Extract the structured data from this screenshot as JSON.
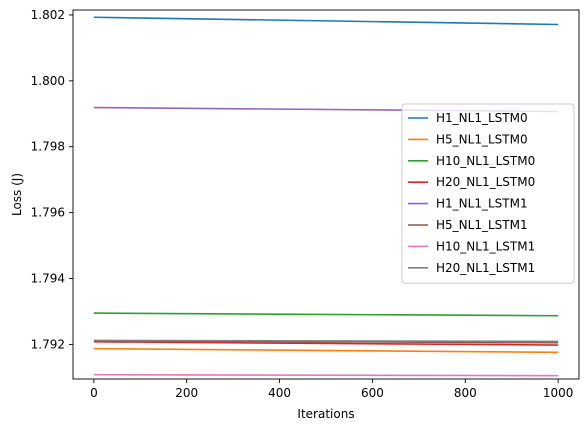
{
  "chart_data": {
    "type": "line",
    "xlabel": "Iterations",
    "ylabel": "Loss (J)",
    "xlim": [
      -45,
      1045
    ],
    "ylim": [
      1.79095,
      1.80215
    ],
    "xticks": [
      0,
      200,
      400,
      600,
      800,
      1000
    ],
    "yticks": [
      1.792,
      1.794,
      1.796,
      1.798,
      1.8,
      1.802
    ],
    "ytick_labels": [
      "1.792",
      "1.794",
      "1.796",
      "1.798",
      "1.800",
      "1.802"
    ],
    "grid": false,
    "legend_position": "center-right",
    "series": [
      {
        "name": "H1_NL1_LSTM0",
        "color": "#1f77b4",
        "x": [
          0,
          1000
        ],
        "y": [
          1.80193,
          1.80171
        ]
      },
      {
        "name": "H5_NL1_LSTM0",
        "color": "#ff7f0e",
        "x": [
          0,
          1000
        ],
        "y": [
          1.79187,
          1.79176
        ]
      },
      {
        "name": "H10_NL1_LSTM0",
        "color": "#2ca02c",
        "x": [
          0,
          1000
        ],
        "y": [
          1.79295,
          1.79287
        ]
      },
      {
        "name": "H20_NL1_LSTM0",
        "color": "#d62728",
        "x": [
          0,
          1000
        ],
        "y": [
          1.79208,
          1.79198
        ]
      },
      {
        "name": "H1_NL1_LSTM1",
        "color": "#9467bd",
        "x": [
          0,
          1000
        ],
        "y": [
          1.79919,
          1.79907
        ]
      },
      {
        "name": "H5_NL1_LSTM1",
        "color": "#8c564b",
        "x": [
          0,
          1000
        ],
        "y": [
          1.79211,
          1.79205
        ]
      },
      {
        "name": "H10_NL1_LSTM1",
        "color": "#e377c2",
        "x": [
          0,
          1000
        ],
        "y": [
          1.79108,
          1.79105
        ]
      },
      {
        "name": "H20_NL1_LSTM1",
        "color": "#7f7f7f",
        "x": [
          0,
          1000
        ],
        "y": [
          1.79212,
          1.79209
        ]
      }
    ]
  }
}
